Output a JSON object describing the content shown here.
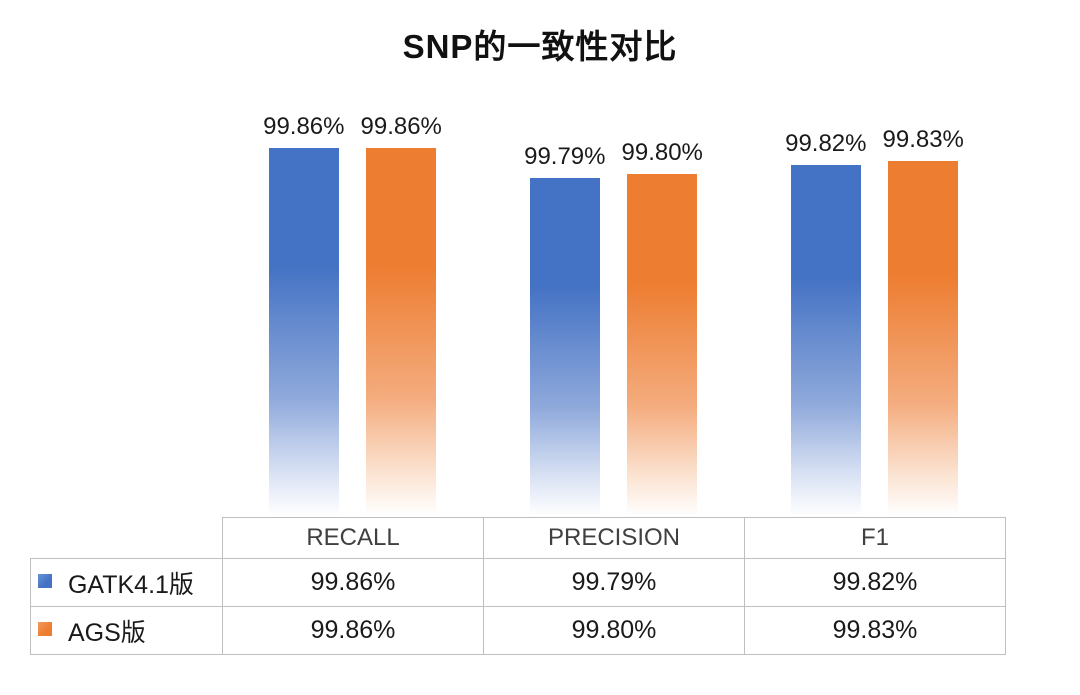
{
  "chart_data": {
    "type": "bar",
    "title": "SNP的一致性对比",
    "categories": [
      "RECALL",
      "PRECISION",
      "F1"
    ],
    "series": [
      {
        "name": "GATK4.1版",
        "color": "#4472C4",
        "values": [
          99.86,
          99.79,
          99.82
        ],
        "labels": [
          "99.86%",
          "99.79%",
          "99.82%"
        ]
      },
      {
        "name": "AGS版",
        "color": "#ED7D31",
        "values": [
          99.86,
          99.8,
          99.83
        ],
        "labels": [
          "99.86%",
          "99.80%",
          "99.83%"
        ]
      }
    ],
    "ylim": [
      99.0,
      100.0
    ],
    "grid": false,
    "legend_position": "data-table-left",
    "data_table": true
  },
  "table": {
    "headers": [
      "RECALL",
      "PRECISION",
      "F1"
    ],
    "rows": [
      {
        "label": "GATK4.1版",
        "values": [
          "99.86%",
          "99.79%",
          "99.82%"
        ]
      },
      {
        "label": "AGS版",
        "values": [
          "99.86%",
          "99.80%",
          "99.83%"
        ]
      }
    ]
  },
  "colors": {
    "series1": "#4472C4",
    "series2": "#ED7D31",
    "table_border": "#BFBFBF",
    "title_text": "#111111"
  }
}
